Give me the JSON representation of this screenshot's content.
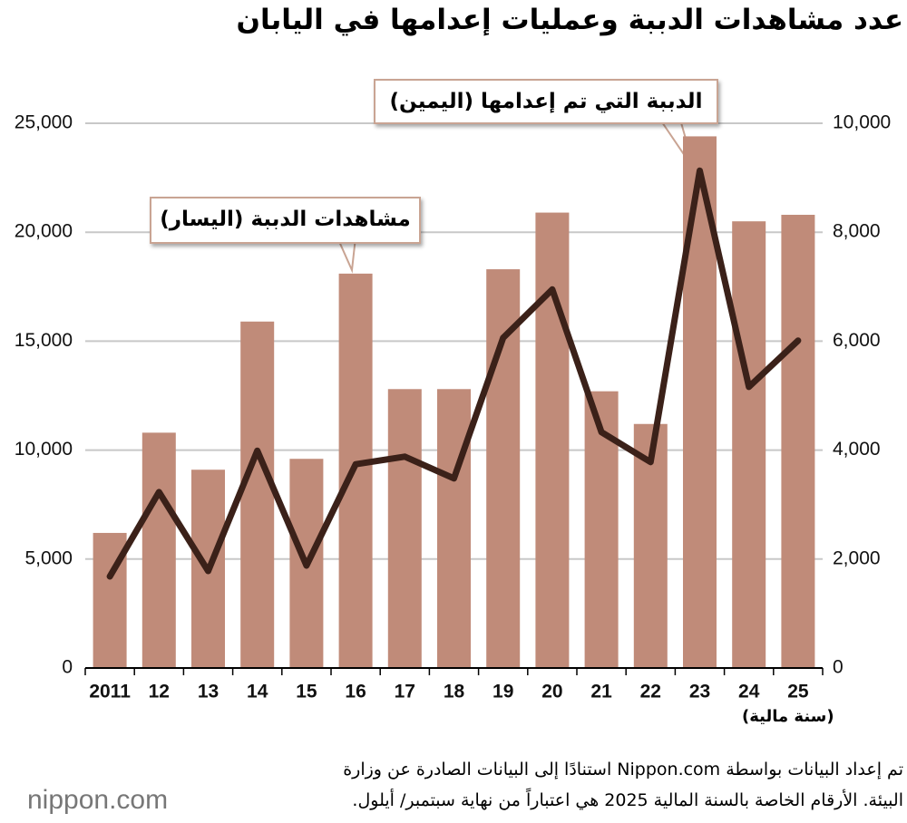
{
  "chart_data": {
    "type": "bar",
    "title": "عدد مشاهدات الدببة وعمليات إعدامها في اليابان",
    "categories": [
      "2011",
      "12",
      "13",
      "14",
      "15",
      "16",
      "17",
      "18",
      "19",
      "20",
      "21",
      "22",
      "23",
      "24",
      "25"
    ],
    "x_label": "(سنة مالية)",
    "series": [
      {
        "name": "مشاهدات الدببة (اليسار)",
        "type": "bar",
        "color": "#c08b79",
        "values": [
          6200,
          10800,
          9100,
          15900,
          9600,
          18100,
          12800,
          12800,
          18300,
          20900,
          12700,
          11200,
          24400,
          20500,
          20800
        ]
      },
      {
        "name": "الدببة التي تم إعدامها (اليمين)",
        "type": "line",
        "axis": "y2",
        "color": "#3b2119",
        "values": [
          1680,
          3230,
          1780,
          3990,
          1880,
          3740,
          3880,
          3480,
          6060,
          6950,
          4330,
          3780,
          9130,
          5160,
          6010
        ]
      }
    ],
    "ylim": [
      0,
      25000
    ],
    "yticks": [
      0,
      {
        "value": 5000,
        "label": "5,000"
      },
      {
        "value": 10000,
        "label": "10,000"
      },
      {
        "value": 15000,
        "label": "15,000"
      },
      {
        "value": 20000,
        "label": "20,000"
      },
      {
        "value": 25000,
        "label": "25,000"
      }
    ],
    "y2lim": [
      0,
      10000
    ],
    "y2ticks": [
      0,
      {
        "value": 2000,
        "label": "2,000"
      },
      {
        "value": 4000,
        "label": "4,000"
      },
      {
        "value": 6000,
        "label": "6,000"
      },
      {
        "value": 8000,
        "label": "8,000"
      },
      {
        "value": 10000,
        "label": "10,000"
      }
    ],
    "grid": true
  },
  "footer": {
    "notes": [
      "تم إعداد البيانات بواسطة Nippon.com استنادًا إلى البيانات الصادرة عن وزارة",
      "البيئة. الأرقام الخاصة بالسنة المالية 2025 هي اعتباراً من نهاية سبتمبر/ أيلول."
    ],
    "logo": "nippon.com"
  }
}
